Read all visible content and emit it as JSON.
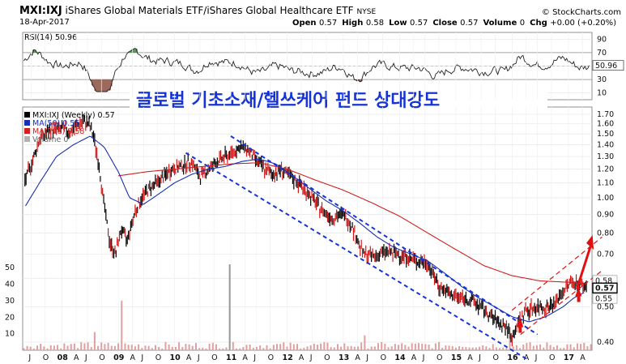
{
  "header": {
    "symbol": "MXI:IXJ",
    "name": "iShares Global Materials ETF/iShares Global Healthcare ETF",
    "exchange": "NYSE",
    "brand": "© StockCharts.com",
    "date": "18-Apr-2017",
    "quote": [
      {
        "label": "Open",
        "value": "0.57"
      },
      {
        "label": "High",
        "value": "0.58"
      },
      {
        "label": "Low",
        "value": "0.57"
      },
      {
        "label": "Close",
        "value": "0.57"
      },
      {
        "label": "Volume",
        "value": "0"
      },
      {
        "label": "Chg",
        "value": "+0.00 (+0.20%)"
      }
    ]
  },
  "annotation_title": "글로벌 기초소재/헬쓰케어 펀드 상대강도",
  "colors": {
    "price": "#000000",
    "ma50": "#1a2fb0",
    "ma200": "#d22020",
    "volume": "#e0a0a0",
    "channel": "#1533d6",
    "breakout": "#e11010",
    "rsi_fill": "#8a5040"
  },
  "chart_data": [
    {
      "type": "line",
      "title": "RSI(14) 50.96",
      "series": [
        {
          "name": "RSI(14)",
          "last": 50.96
        }
      ],
      "yticks": [
        10,
        30,
        50,
        70,
        90
      ],
      "guides": [
        30,
        70
      ],
      "ylim": [
        0,
        100
      ],
      "last_label": "50.96"
    },
    {
      "type": "line",
      "title": "MXI:IXJ (Weekly) 0.57",
      "legend": [
        "MXI:IXJ (Weekly) 0.57",
        "MA(50) 0.55",
        "MA(200) 0.58",
        "Volume 0"
      ],
      "x_labels": [
        "J",
        "O",
        "08",
        "A",
        "J",
        "O",
        "09",
        "A",
        "J",
        "O",
        "10",
        "A",
        "J",
        "O",
        "11",
        "A",
        "J",
        "O",
        "12",
        "A",
        "J",
        "O",
        "13",
        "A",
        "J",
        "O",
        "14",
        "A",
        "J",
        "O",
        "15",
        "A",
        "J",
        "O",
        "16",
        "A",
        "J",
        "O",
        "17",
        "A"
      ],
      "x_label_years": [
        2007.45,
        2007.7,
        2008.0,
        2008.25,
        2008.45,
        2008.7,
        2009.0,
        2009.25,
        2009.45,
        2009.7,
        2010.0,
        2010.25,
        2010.45,
        2010.7,
        2011.0,
        2011.25,
        2011.45,
        2011.7,
        2012.0,
        2012.25,
        2012.45,
        2012.7,
        2013.0,
        2013.25,
        2013.45,
        2013.7,
        2014.0,
        2014.25,
        2014.45,
        2014.7,
        2015.0,
        2015.25,
        2015.45,
        2015.7,
        2016.0,
        2016.25,
        2016.45,
        2016.7,
        2017.0,
        2017.25
      ],
      "y_scale": "log",
      "ylim": [
        0.38,
        1.78
      ],
      "yticks": [
        0.4,
        0.5,
        0.6,
        0.7,
        0.8,
        0.9,
        1.0,
        1.1,
        1.2,
        1.3,
        1.4,
        1.5,
        1.6,
        1.7
      ],
      "volume_ticks": [
        10,
        20,
        30,
        40,
        50
      ],
      "price_points": [
        [
          2007.35,
          1.12
        ],
        [
          2007.5,
          1.3
        ],
        [
          2007.6,
          1.45
        ],
        [
          2007.75,
          1.52
        ],
        [
          2007.9,
          1.55
        ],
        [
          2008.0,
          1.55
        ],
        [
          2008.15,
          1.52
        ],
        [
          2008.3,
          1.6
        ],
        [
          2008.45,
          1.62
        ],
        [
          2008.55,
          1.5
        ],
        [
          2008.65,
          1.25
        ],
        [
          2008.75,
          0.95
        ],
        [
          2008.85,
          0.75
        ],
        [
          2008.95,
          0.7
        ],
        [
          2009.05,
          0.82
        ],
        [
          2009.15,
          0.76
        ],
        [
          2009.3,
          0.92
        ],
        [
          2009.45,
          1.02
        ],
        [
          2009.6,
          1.08
        ],
        [
          2009.75,
          1.12
        ],
        [
          2009.95,
          1.2
        ],
        [
          2010.1,
          1.22
        ],
        [
          2010.3,
          1.26
        ],
        [
          2010.45,
          1.14
        ],
        [
          2010.6,
          1.2
        ],
        [
          2010.75,
          1.26
        ],
        [
          2010.9,
          1.3
        ],
        [
          2011.0,
          1.32
        ],
        [
          2011.15,
          1.38
        ],
        [
          2011.3,
          1.36
        ],
        [
          2011.45,
          1.27
        ],
        [
          2011.6,
          1.2
        ],
        [
          2011.75,
          1.16
        ],
        [
          2011.9,
          1.2
        ],
        [
          2012.0,
          1.16
        ],
        [
          2012.2,
          1.1
        ],
        [
          2012.4,
          1.02
        ],
        [
          2012.6,
          0.93
        ],
        [
          2012.8,
          0.88
        ],
        [
          2013.0,
          0.9
        ],
        [
          2013.15,
          0.84
        ],
        [
          2013.35,
          0.7
        ],
        [
          2013.55,
          0.69
        ],
        [
          2013.75,
          0.71
        ],
        [
          2013.95,
          0.7
        ],
        [
          2014.1,
          0.69
        ],
        [
          2014.3,
          0.67
        ],
        [
          2014.5,
          0.66
        ],
        [
          2014.7,
          0.57
        ],
        [
          2014.9,
          0.54
        ],
        [
          2015.1,
          0.53
        ],
        [
          2015.3,
          0.52
        ],
        [
          2015.5,
          0.49
        ],
        [
          2015.7,
          0.46
        ],
        [
          2015.9,
          0.44
        ],
        [
          2016.0,
          0.41
        ],
        [
          2016.1,
          0.45
        ],
        [
          2016.25,
          0.49
        ],
        [
          2016.45,
          0.5
        ],
        [
          2016.6,
          0.5
        ],
        [
          2016.75,
          0.51
        ],
        [
          2016.9,
          0.55
        ],
        [
          2017.05,
          0.59
        ],
        [
          2017.15,
          0.58
        ],
        [
          2017.3,
          0.57
        ]
      ],
      "ma50_points": [
        [
          2007.35,
          0.95
        ],
        [
          2007.6,
          1.1
        ],
        [
          2007.9,
          1.3
        ],
        [
          2008.2,
          1.4
        ],
        [
          2008.5,
          1.48
        ],
        [
          2008.75,
          1.38
        ],
        [
          2009.0,
          1.18
        ],
        [
          2009.2,
          1.0
        ],
        [
          2009.45,
          0.96
        ],
        [
          2009.7,
          1.02
        ],
        [
          2010.0,
          1.1
        ],
        [
          2010.3,
          1.16
        ],
        [
          2010.6,
          1.2
        ],
        [
          2010.9,
          1.22
        ],
        [
          2011.2,
          1.26
        ],
        [
          2011.5,
          1.28
        ],
        [
          2011.8,
          1.24
        ],
        [
          2012.1,
          1.15
        ],
        [
          2012.4,
          1.06
        ],
        [
          2012.7,
          0.98
        ],
        [
          2013.0,
          0.92
        ],
        [
          2013.3,
          0.85
        ],
        [
          2013.6,
          0.78
        ],
        [
          2013.9,
          0.73
        ],
        [
          2014.2,
          0.7
        ],
        [
          2014.5,
          0.67
        ],
        [
          2014.8,
          0.62
        ],
        [
          2015.1,
          0.57
        ],
        [
          2015.4,
          0.53
        ],
        [
          2015.7,
          0.5
        ],
        [
          2016.0,
          0.47
        ],
        [
          2016.3,
          0.455
        ],
        [
          2016.6,
          0.47
        ],
        [
          2016.9,
          0.5
        ],
        [
          2017.1,
          0.53
        ],
        [
          2017.3,
          0.55
        ]
      ],
      "ma200_points": [
        [
          2009.0,
          1.15
        ],
        [
          2009.5,
          1.18
        ],
        [
          2010.0,
          1.2
        ],
        [
          2010.5,
          1.22
        ],
        [
          2011.0,
          1.24
        ],
        [
          2011.5,
          1.25
        ],
        [
          2012.0,
          1.2
        ],
        [
          2012.5,
          1.12
        ],
        [
          2013.0,
          1.05
        ],
        [
          2013.5,
          0.97
        ],
        [
          2014.0,
          0.89
        ],
        [
          2014.5,
          0.8
        ],
        [
          2015.0,
          0.72
        ],
        [
          2015.5,
          0.65
        ],
        [
          2016.0,
          0.61
        ],
        [
          2016.5,
          0.59
        ],
        [
          2017.0,
          0.585
        ],
        [
          2017.3,
          0.58
        ]
      ],
      "channels": [
        {
          "from": [
            2011.0,
            1.48
          ],
          "to": [
            2016.45,
            0.42
          ]
        },
        {
          "from": [
            2010.2,
            1.33
          ],
          "to": [
            2016.25,
            0.36
          ]
        },
        {
          "from": [
            2016.0,
            0.49
          ],
          "to": [
            2017.6,
            0.78
          ]
        },
        {
          "from": [
            2016.15,
            0.42
          ],
          "to": [
            2017.6,
            0.63
          ]
        }
      ],
      "last_labels": [
        "0.58",
        "0.57",
        "0.55"
      ]
    }
  ]
}
